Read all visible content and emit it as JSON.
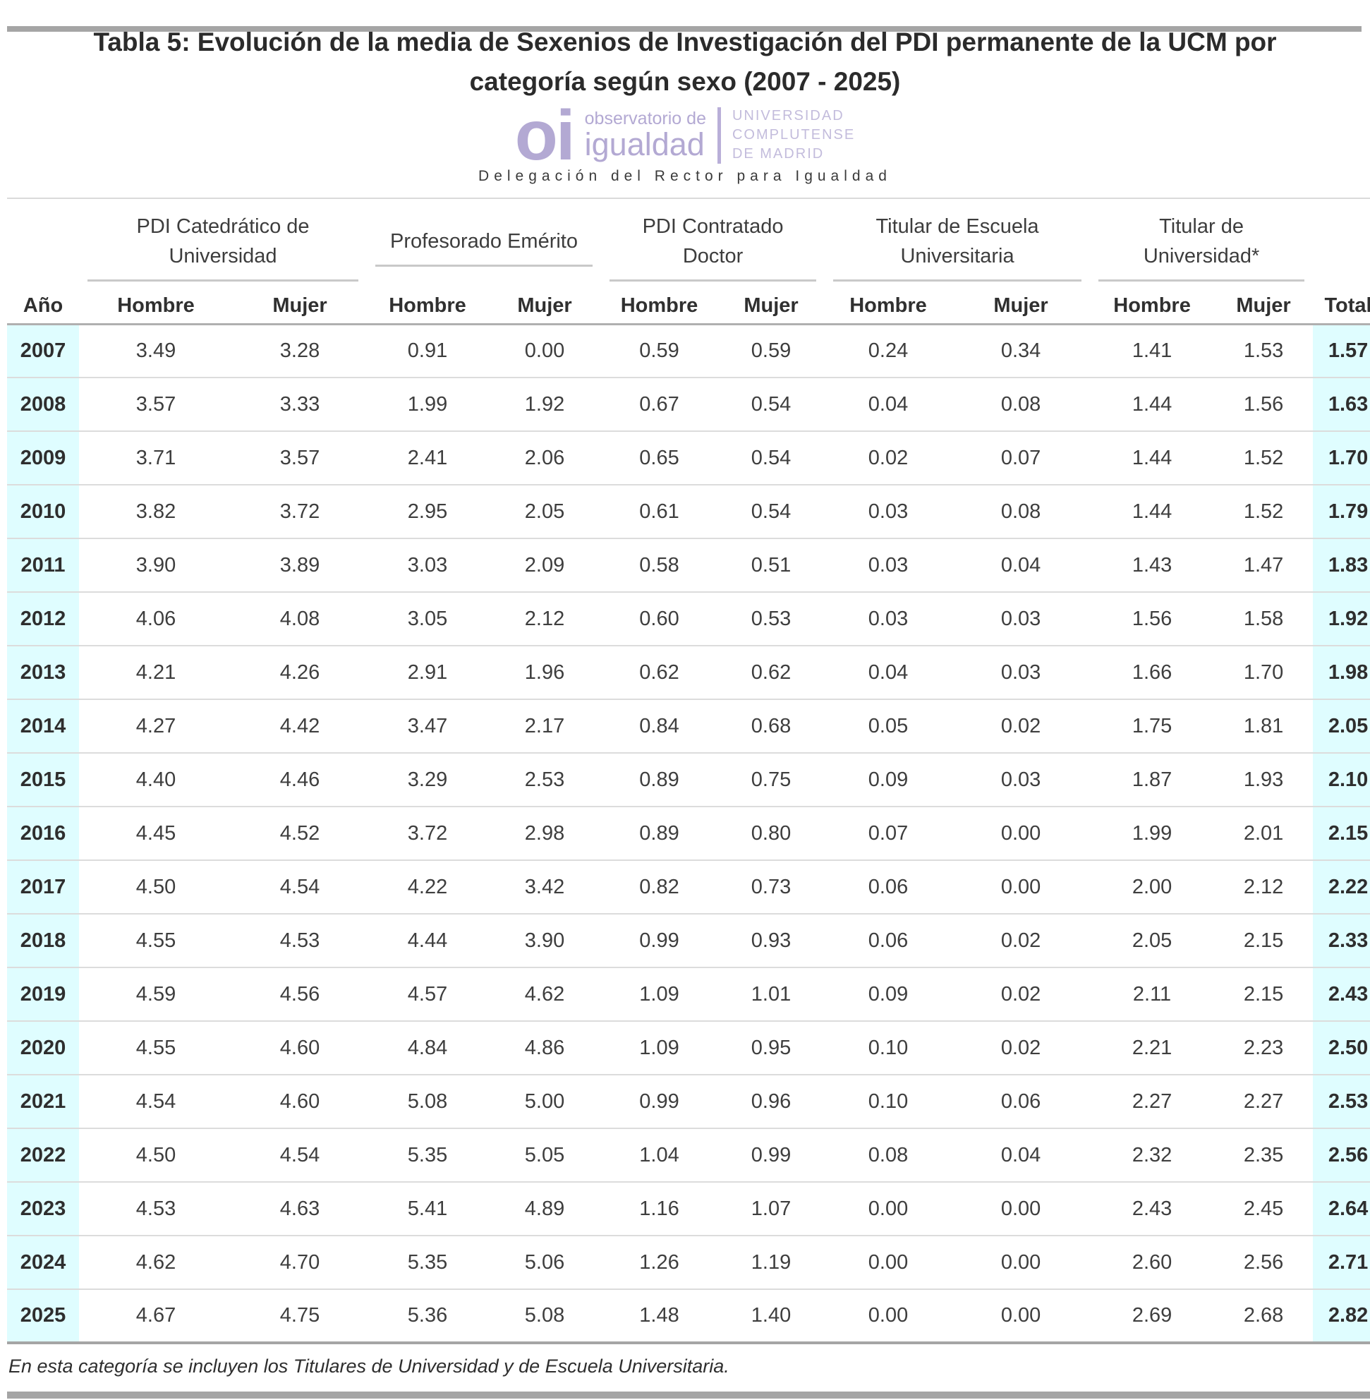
{
  "title": {
    "line1": "Tabla 5: Evolución de la media de Sexenios de Investigación del PDI permanente de la UCM por",
    "line2": "categoría según sexo (2007 - 2025)"
  },
  "logo": {
    "monogram": "oi",
    "name_line1": "observatorio de",
    "name_line2": "igualdad",
    "university_line1": "UNIVERSIDAD",
    "university_line2": "COMPLUTENSE",
    "university_line3": "DE MADRID",
    "tagline": "Delegación del Rector para Igualdad",
    "purple": "#b3a9d3",
    "purple_light": "#c3bcdc"
  },
  "table": {
    "highlight_color": "#dffdff",
    "groups": [
      {
        "label": "PDI Catedrático de Universidad"
      },
      {
        "label": "Profesorado Emérito"
      },
      {
        "label": "PDI Contratado Doctor"
      },
      {
        "label": "Titular de Escuela Universitaria"
      },
      {
        "label": "Titular de Universidad*"
      }
    ],
    "sub_headers": [
      "Año",
      "Hombre",
      "Mujer",
      "Hombre",
      "Mujer",
      "Hombre",
      "Mujer",
      "Hombre",
      "Mujer",
      "Hombre",
      "Mujer",
      "Total"
    ],
    "rows": [
      {
        "year": "2007",
        "values": [
          "3.49",
          "3.28",
          "0.91",
          "0.00",
          "0.59",
          "0.59",
          "0.24",
          "0.34",
          "1.41",
          "1.53"
        ],
        "total": "1.57"
      },
      {
        "year": "2008",
        "values": [
          "3.57",
          "3.33",
          "1.99",
          "1.92",
          "0.67",
          "0.54",
          "0.04",
          "0.08",
          "1.44",
          "1.56"
        ],
        "total": "1.63"
      },
      {
        "year": "2009",
        "values": [
          "3.71",
          "3.57",
          "2.41",
          "2.06",
          "0.65",
          "0.54",
          "0.02",
          "0.07",
          "1.44",
          "1.52"
        ],
        "total": "1.70"
      },
      {
        "year": "2010",
        "values": [
          "3.82",
          "3.72",
          "2.95",
          "2.05",
          "0.61",
          "0.54",
          "0.03",
          "0.08",
          "1.44",
          "1.52"
        ],
        "total": "1.79"
      },
      {
        "year": "2011",
        "values": [
          "3.90",
          "3.89",
          "3.03",
          "2.09",
          "0.58",
          "0.51",
          "0.03",
          "0.04",
          "1.43",
          "1.47"
        ],
        "total": "1.83"
      },
      {
        "year": "2012",
        "values": [
          "4.06",
          "4.08",
          "3.05",
          "2.12",
          "0.60",
          "0.53",
          "0.03",
          "0.03",
          "1.56",
          "1.58"
        ],
        "total": "1.92"
      },
      {
        "year": "2013",
        "values": [
          "4.21",
          "4.26",
          "2.91",
          "1.96",
          "0.62",
          "0.62",
          "0.04",
          "0.03",
          "1.66",
          "1.70"
        ],
        "total": "1.98"
      },
      {
        "year": "2014",
        "values": [
          "4.27",
          "4.42",
          "3.47",
          "2.17",
          "0.84",
          "0.68",
          "0.05",
          "0.02",
          "1.75",
          "1.81"
        ],
        "total": "2.05"
      },
      {
        "year": "2015",
        "values": [
          "4.40",
          "4.46",
          "3.29",
          "2.53",
          "0.89",
          "0.75",
          "0.09",
          "0.03",
          "1.87",
          "1.93"
        ],
        "total": "2.10"
      },
      {
        "year": "2016",
        "values": [
          "4.45",
          "4.52",
          "3.72",
          "2.98",
          "0.89",
          "0.80",
          "0.07",
          "0.00",
          "1.99",
          "2.01"
        ],
        "total": "2.15"
      },
      {
        "year": "2017",
        "values": [
          "4.50",
          "4.54",
          "4.22",
          "3.42",
          "0.82",
          "0.73",
          "0.06",
          "0.00",
          "2.00",
          "2.12"
        ],
        "total": "2.22"
      },
      {
        "year": "2018",
        "values": [
          "4.55",
          "4.53",
          "4.44",
          "3.90",
          "0.99",
          "0.93",
          "0.06",
          "0.02",
          "2.05",
          "2.15"
        ],
        "total": "2.33"
      },
      {
        "year": "2019",
        "values": [
          "4.59",
          "4.56",
          "4.57",
          "4.62",
          "1.09",
          "1.01",
          "0.09",
          "0.02",
          "2.11",
          "2.15"
        ],
        "total": "2.43"
      },
      {
        "year": "2020",
        "values": [
          "4.55",
          "4.60",
          "4.84",
          "4.86",
          "1.09",
          "0.95",
          "0.10",
          "0.02",
          "2.21",
          "2.23"
        ],
        "total": "2.50"
      },
      {
        "year": "2021",
        "values": [
          "4.54",
          "4.60",
          "5.08",
          "5.00",
          "0.99",
          "0.96",
          "0.10",
          "0.06",
          "2.27",
          "2.27"
        ],
        "total": "2.53"
      },
      {
        "year": "2022",
        "values": [
          "4.50",
          "4.54",
          "5.35",
          "5.05",
          "1.04",
          "0.99",
          "0.08",
          "0.04",
          "2.32",
          "2.35"
        ],
        "total": "2.56"
      },
      {
        "year": "2023",
        "values": [
          "4.53",
          "4.63",
          "5.41",
          "4.89",
          "1.16",
          "1.07",
          "0.00",
          "0.00",
          "2.43",
          "2.45"
        ],
        "total": "2.64"
      },
      {
        "year": "2024",
        "values": [
          "4.62",
          "4.70",
          "5.35",
          "5.06",
          "1.26",
          "1.19",
          "0.00",
          "0.00",
          "2.60",
          "2.56"
        ],
        "total": "2.71"
      },
      {
        "year": "2025",
        "values": [
          "4.67",
          "4.75",
          "5.36",
          "5.08",
          "1.48",
          "1.40",
          "0.00",
          "0.00",
          "2.69",
          "2.68"
        ],
        "total": "2.82"
      }
    ]
  },
  "footnote": "En esta categoría se incluyen los Titulares de Universidad y de Escuela Universitaria.",
  "chart_data": {
    "type": "table",
    "title": "Tabla 5: Evolución de la media de Sexenios de Investigación del PDI permanente de la UCM por categoría según sexo (2007 - 2025)",
    "column_groups": [
      "PDI Catedrático de Universidad",
      "Profesorado Emérito",
      "PDI Contratado Doctor",
      "Titular de Escuela Universitaria",
      "Titular de Universidad*"
    ],
    "columns": [
      "Año",
      "Hombre",
      "Mujer",
      "Hombre",
      "Mujer",
      "Hombre",
      "Mujer",
      "Hombre",
      "Mujer",
      "Hombre",
      "Mujer",
      "Total"
    ],
    "rows": [
      [
        2007,
        3.49,
        3.28,
        0.91,
        0.0,
        0.59,
        0.59,
        0.24,
        0.34,
        1.41,
        1.53,
        1.57
      ],
      [
        2008,
        3.57,
        3.33,
        1.99,
        1.92,
        0.67,
        0.54,
        0.04,
        0.08,
        1.44,
        1.56,
        1.63
      ],
      [
        2009,
        3.71,
        3.57,
        2.41,
        2.06,
        0.65,
        0.54,
        0.02,
        0.07,
        1.44,
        1.52,
        1.7
      ],
      [
        2010,
        3.82,
        3.72,
        2.95,
        2.05,
        0.61,
        0.54,
        0.03,
        0.08,
        1.44,
        1.52,
        1.79
      ],
      [
        2011,
        3.9,
        3.89,
        3.03,
        2.09,
        0.58,
        0.51,
        0.03,
        0.04,
        1.43,
        1.47,
        1.83
      ],
      [
        2012,
        4.06,
        4.08,
        3.05,
        2.12,
        0.6,
        0.53,
        0.03,
        0.03,
        1.56,
        1.58,
        1.92
      ],
      [
        2013,
        4.21,
        4.26,
        2.91,
        1.96,
        0.62,
        0.62,
        0.04,
        0.03,
        1.66,
        1.7,
        1.98
      ],
      [
        2014,
        4.27,
        4.42,
        3.47,
        2.17,
        0.84,
        0.68,
        0.05,
        0.02,
        1.75,
        1.81,
        2.05
      ],
      [
        2015,
        4.4,
        4.46,
        3.29,
        2.53,
        0.89,
        0.75,
        0.09,
        0.03,
        1.87,
        1.93,
        2.1
      ],
      [
        2016,
        4.45,
        4.52,
        3.72,
        2.98,
        0.89,
        0.8,
        0.07,
        0.0,
        1.99,
        2.01,
        2.15
      ],
      [
        2017,
        4.5,
        4.54,
        4.22,
        3.42,
        0.82,
        0.73,
        0.06,
        0.0,
        2.0,
        2.12,
        2.22
      ],
      [
        2018,
        4.55,
        4.53,
        4.44,
        3.9,
        0.99,
        0.93,
        0.06,
        0.02,
        2.05,
        2.15,
        2.33
      ],
      [
        2019,
        4.59,
        4.56,
        4.57,
        4.62,
        1.09,
        1.01,
        0.09,
        0.02,
        2.11,
        2.15,
        2.43
      ],
      [
        2020,
        4.55,
        4.6,
        4.84,
        4.86,
        1.09,
        0.95,
        0.1,
        0.02,
        2.21,
        2.23,
        2.5
      ],
      [
        2021,
        4.54,
        4.6,
        5.08,
        5.0,
        0.99,
        0.96,
        0.1,
        0.06,
        2.27,
        2.27,
        2.53
      ],
      [
        2022,
        4.5,
        4.54,
        5.35,
        5.05,
        1.04,
        0.99,
        0.08,
        0.04,
        2.32,
        2.35,
        2.56
      ],
      [
        2023,
        4.53,
        4.63,
        5.41,
        4.89,
        1.16,
        1.07,
        0.0,
        0.0,
        2.43,
        2.45,
        2.64
      ],
      [
        2024,
        4.62,
        4.7,
        5.35,
        5.06,
        1.26,
        1.19,
        0.0,
        0.0,
        2.6,
        2.56,
        2.71
      ],
      [
        2025,
        4.67,
        4.75,
        5.36,
        5.08,
        1.48,
        1.4,
        0.0,
        0.0,
        2.69,
        2.68,
        2.82
      ]
    ]
  }
}
